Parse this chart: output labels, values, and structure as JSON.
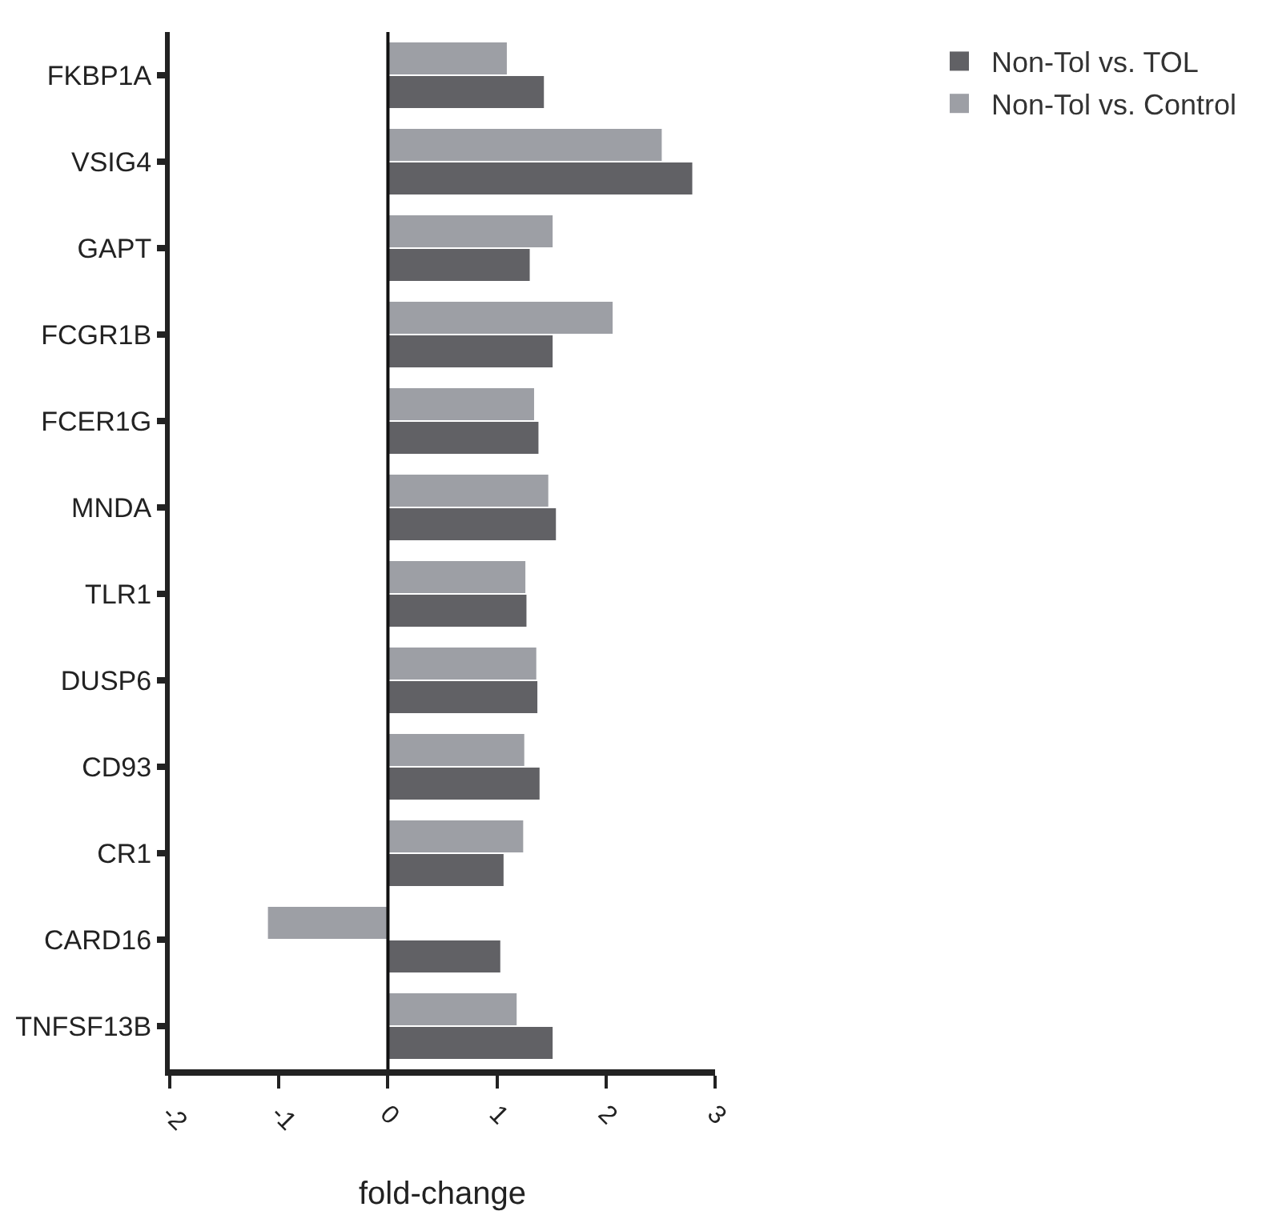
{
  "chart_data": {
    "type": "bar",
    "orientation": "horizontal",
    "xlabel": "fold-change",
    "categories": [
      "FKBP1A",
      "VSIG4",
      "GAPT",
      "FCGR1B",
      "FCER1G",
      "MNDA",
      "TLR1",
      "DUSP6",
      "CD93",
      "CR1",
      "CARD16",
      "TNFSF13B"
    ],
    "series": [
      {
        "name": "Non-Tol vs. Control",
        "color": "#9d9fa5",
        "values": [
          1.09,
          2.51,
          1.51,
          2.06,
          1.34,
          1.47,
          1.26,
          1.36,
          1.25,
          1.24,
          -1.1,
          1.18
        ]
      },
      {
        "name": "Non-Tol vs. TOL",
        "color": "#616165",
        "values": [
          1.43,
          2.79,
          1.3,
          1.51,
          1.38,
          1.54,
          1.27,
          1.37,
          1.39,
          1.06,
          1.03,
          1.51
        ]
      }
    ],
    "ref_lines": [
      {
        "axis": "x",
        "value": 0,
        "color": "#111111"
      }
    ],
    "xlim": [
      -2,
      3
    ],
    "xticks": [
      -2,
      -1,
      0,
      1,
      2,
      3
    ],
    "legend": "top right"
  }
}
